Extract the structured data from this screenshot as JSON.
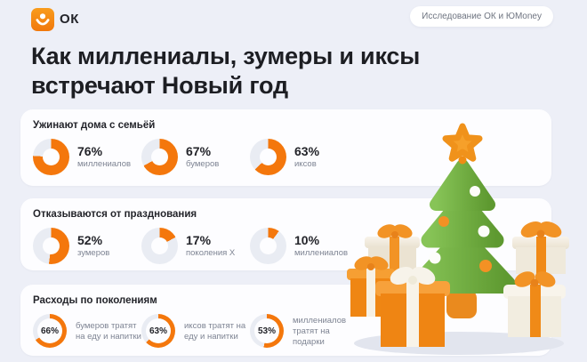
{
  "header": {
    "logo_text": "ОК",
    "badge": "Исследование ОК и ЮMoney"
  },
  "title": {
    "line1": "Как миллениалы, зумеры и иксы",
    "line2": "встречают Новый год"
  },
  "colors": {
    "background": "#EDEFF7",
    "card": "#FDFDFF",
    "accent": "#F4770C",
    "track": "#E9ECF3",
    "text_dark": "#23242A",
    "text_gray": "#7E8493",
    "logo_orange": "#F1780C"
  },
  "chart_data": [
    {
      "type": "donut",
      "title": "Ужинают дома с семьёй",
      "style": "pct-outside",
      "values": [
        {
          "value": 76,
          "label": "миллениалов"
        },
        {
          "value": 67,
          "label": "бумеров"
        },
        {
          "value": 63,
          "label": "иксов"
        }
      ]
    },
    {
      "type": "donut",
      "title": "Отказываются от празднования",
      "style": "pct-outside",
      "values": [
        {
          "value": 52,
          "label": "зумеров"
        },
        {
          "value": 17,
          "label": "поколения X"
        },
        {
          "value": 10,
          "label": "миллениалов"
        }
      ]
    },
    {
      "type": "donut",
      "title": "Расходы по поколениям",
      "style": "pct-inside",
      "values": [
        {
          "value": 66,
          "label": "бумеров тратят на еду и напитки"
        },
        {
          "value": 63,
          "label": "иксов тратят на еду и напитки"
        },
        {
          "value": 53,
          "label": "миллениалов тратят на подарки"
        }
      ]
    }
  ],
  "illustration": {
    "name": "christmas-tree-with-gifts"
  }
}
